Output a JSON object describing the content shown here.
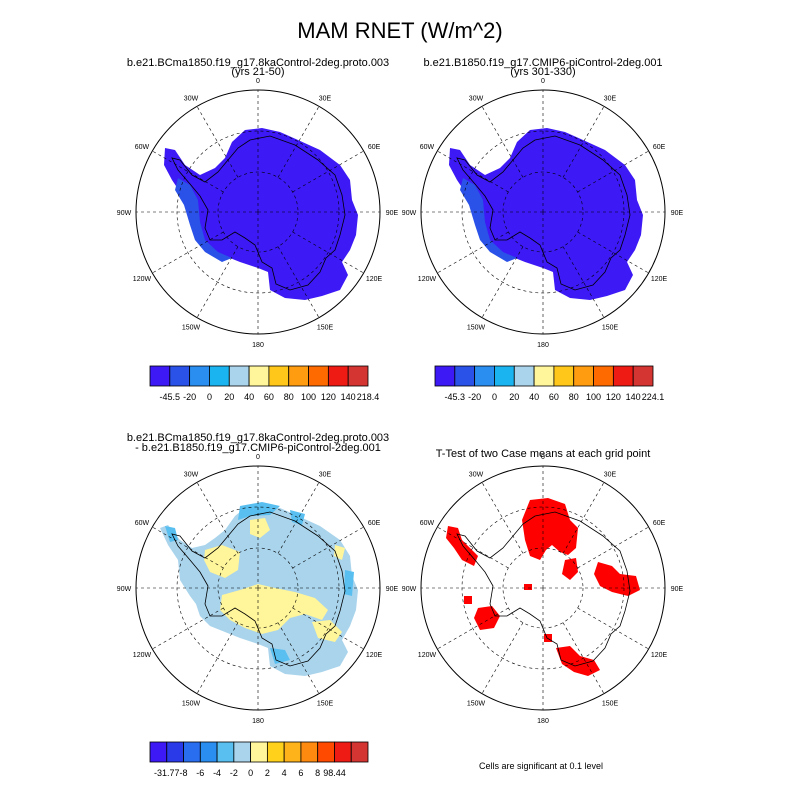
{
  "title": "MAM RNET (W/m^2)",
  "panels": [
    {
      "title_line1": "b.e21.BCma1850.f19_g17.8kaControl-2deg.proto.003",
      "title_line2": "(yrs 21-50)"
    },
    {
      "title_line1": "b.e21.B1850.f19_g17.CMIP6-piControl-2deg.001",
      "title_line2": "(yrs 301-330)"
    },
    {
      "title_line1": "b.e21.BCma1850.f19_g17.8kaControl-2deg.proto.003",
      "title_line2": "- b.e21.B1850.f19_g17.CMIP6-piControl-2deg.001"
    },
    {
      "title_line1": "T-Test of two Case means at each grid point",
      "title_line2": ""
    }
  ],
  "longitude_labels": [
    "0",
    "30E",
    "60E",
    "90E",
    "120E",
    "150E",
    "180",
    "150W",
    "120W",
    "90W",
    "60W",
    "30W"
  ],
  "colorbars": [
    {
      "colors": [
        "#3c19f5",
        "#2a52e8",
        "#2a8ef0",
        "#1ab4f0",
        "#a9d4ec",
        "#fff59a",
        "#ffc71a",
        "#ff9c10",
        "#ff6a00",
        "#ee1b14",
        "#d43533"
      ],
      "labels": [
        "-45.5",
        "-20",
        "0",
        "20",
        "40",
        "60",
        "80",
        "100",
        "120",
        "140",
        "218.4"
      ]
    },
    {
      "colors": [
        "#3c19f5",
        "#2a52e8",
        "#2a8ef0",
        "#1ab4f0",
        "#a9d4ec",
        "#fff59a",
        "#ffc71a",
        "#ff9c10",
        "#ff6a00",
        "#ee1b14",
        "#d43533"
      ],
      "labels": [
        "-45.3",
        "-20",
        "0",
        "20",
        "40",
        "60",
        "80",
        "100",
        "120",
        "140",
        "224.1"
      ]
    },
    {
      "colors": [
        "#3c19f5",
        "#2a3ae8",
        "#2a6ef0",
        "#2a8ef0",
        "#58bff0",
        "#a9d4ec",
        "#fff59a",
        "#ffd11a",
        "#ffb31a",
        "#ff8a10",
        "#ff4a00",
        "#ee1b14",
        "#d43533"
      ],
      "labels": [
        "-31.77",
        "-8",
        "-6",
        "-4",
        "-2",
        "0",
        "2",
        "4",
        "6",
        "8",
        "98.44"
      ]
    }
  ],
  "significance_note": "Cells are significant at 0.1 level",
  "colors": {
    "antarctica_fill": "#3c19f5",
    "coast_band": "#2a52e8",
    "diff_background": "#a9d4ec",
    "diff_positive": "#fff59a",
    "diff_negative": "#58bff0",
    "significant": "#ff0000"
  }
}
